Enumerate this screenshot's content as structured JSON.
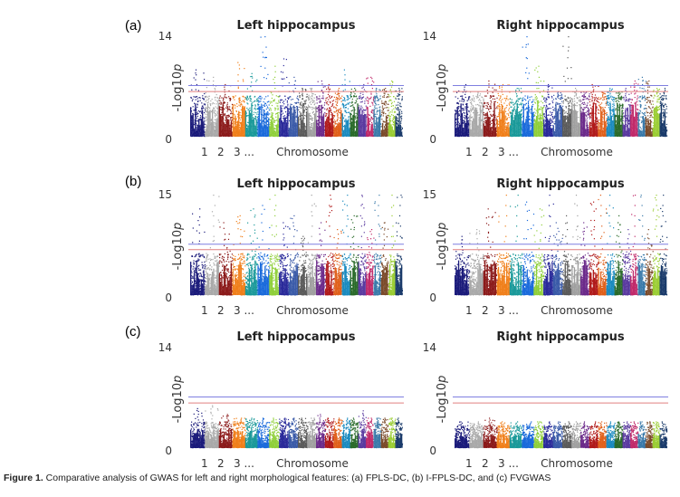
{
  "figure": {
    "caption_bold": "Figure 1.",
    "caption_text": " Comparative analysis of GWAS for left and right morphological features: (a) FPLS-DC, (b) I-FPLS-DC, and (c) FVGWAS",
    "panel_labels": [
      "(a)",
      "(b)",
      "(c)"
    ]
  },
  "colors": {
    "chromosomes": [
      "#1a1a7a",
      "#a9a9a9",
      "#8b1a1a",
      "#f07f1a",
      "#1a9999",
      "#1a6adb",
      "#8fcf3a",
      "#2a2a9a",
      "#3a5aa8",
      "#5a5a5a",
      "#a0a0a0",
      "#6b2a8a",
      "#b01a1a",
      "#e0601a",
      "#1a8abf",
      "#2a6a2a",
      "#5a3aa0",
      "#c02a6a",
      "#3a7aaa",
      "#7a4a2a",
      "#9acd32",
      "#1a3a6a"
    ],
    "threshold_blue": "#7f7fe0",
    "threshold_red": "#e07f7f"
  },
  "chart_data": [
    {
      "type": "scatter",
      "id": "a-left",
      "title": "Left hippocampus",
      "xlabel": "Chromosome",
      "ylabel": "-Log10p",
      "x_tick_labels": [
        "1",
        "2",
        "3 ..."
      ],
      "yticks": [
        "0",
        "14"
      ],
      "ylim": [
        0,
        14
      ],
      "thresholds": {
        "blue": 7.3,
        "red": 6.5
      },
      "baseline_max": 5.5,
      "chromosome_peaks": [
        9.5,
        8.5,
        7.5,
        10.5,
        9,
        14,
        10,
        11,
        8.5,
        7,
        7,
        8,
        7.5,
        7,
        9.5,
        7,
        7.5,
        8.5,
        7,
        7,
        8,
        7
      ]
    },
    {
      "type": "scatter",
      "id": "a-right",
      "title": "Right hippocampus",
      "xlabel": "Chromosome",
      "ylabel": "-Log10p",
      "x_tick_labels": [
        "1",
        "2",
        "3 ..."
      ],
      "yticks": [
        "0",
        "14"
      ],
      "ylim": [
        0,
        14
      ],
      "thresholds": {
        "blue": 7.3,
        "red": 6.5
      },
      "baseline_max": 5.5,
      "chromosome_peaks": [
        7.5,
        6.5,
        8,
        7.5,
        7,
        14,
        10,
        7.5,
        6.5,
        14,
        7,
        6.5,
        7.5,
        6.5,
        7,
        6.5,
        7,
        8,
        8.5,
        8,
        7,
        7
      ]
    },
    {
      "type": "scatter",
      "id": "b-left",
      "title": "Left hippocampus",
      "xlabel": "Chromosome",
      "ylabel": "-Log10p",
      "x_tick_labels": [
        "1",
        "2",
        "3 ..."
      ],
      "yticks": [
        "0",
        "15"
      ],
      "ylim": [
        0,
        15
      ],
      "thresholds": {
        "blue": 7.8,
        "red": 7
      },
      "baseline_max": 6,
      "chromosome_peaks": [
        13,
        15,
        11,
        12,
        13,
        13.5,
        15,
        11,
        12,
        9,
        15,
        11,
        15,
        10,
        15,
        12,
        15,
        10,
        15,
        11,
        15,
        15
      ]
    },
    {
      "type": "scatter",
      "id": "b-right",
      "title": "Right hippocampus",
      "xlabel": "Chromosome",
      "ylabel": "-Log10p",
      "x_tick_labels": [
        "1",
        "2",
        "3 ..."
      ],
      "yticks": [
        "0",
        "15"
      ],
      "ylim": [
        0,
        15
      ],
      "thresholds": {
        "blue": 7.8,
        "red": 7
      },
      "baseline_max": 6,
      "chromosome_peaks": [
        9,
        10,
        13,
        15,
        15,
        14,
        13,
        15,
        11,
        12,
        15,
        11,
        14,
        15,
        15,
        12,
        10,
        15,
        15,
        10,
        15,
        15
      ]
    },
    {
      "type": "scatter",
      "id": "c-left",
      "title": "Left hippocampus",
      "xlabel": "Chromosome",
      "ylabel": "-Log10p",
      "x_tick_labels": [
        "1",
        "2",
        "3 ..."
      ],
      "yticks": [
        "0",
        "14"
      ],
      "ylim": [
        0,
        14
      ],
      "thresholds": {
        "blue": 7.3,
        "red": 6.5
      },
      "baseline_max": 3.5,
      "chromosome_peaks": [
        5.8,
        6.2,
        5,
        4.5,
        4.5,
        4.5,
        4.5,
        4.5,
        4.5,
        4.5,
        4.5,
        5,
        4.5,
        4.5,
        4.5,
        4.5,
        5.5,
        4.5,
        4.5,
        4.5,
        4.5,
        4.5
      ]
    },
    {
      "type": "scatter",
      "id": "c-right",
      "title": "Right hippocampus",
      "xlabel": "Chromosome",
      "ylabel": "-Log10p",
      "x_tick_labels": [
        "1",
        "2",
        "3 ..."
      ],
      "yticks": [
        "0",
        "14"
      ],
      "ylim": [
        0,
        14
      ],
      "thresholds": {
        "blue": 7.3,
        "red": 6.5
      },
      "baseline_max": 3,
      "chromosome_peaks": [
        4,
        4,
        4.5,
        4,
        4,
        4,
        4,
        4,
        4,
        4,
        4,
        4,
        4,
        4,
        4,
        4,
        4,
        4,
        4,
        4,
        4,
        4
      ]
    }
  ]
}
